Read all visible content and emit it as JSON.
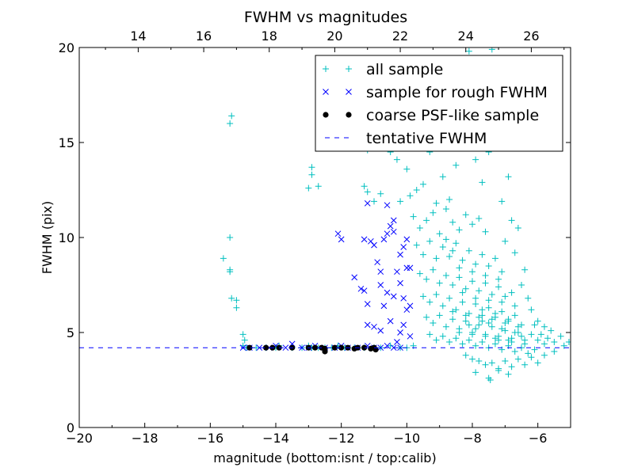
{
  "chart_data": {
    "type": "scatter",
    "title": "FWHM vs magnitudes",
    "xlabel": "magnitude (bottom:isnt / top:calib)",
    "ylabel": "FWHM (pix)",
    "xlim": [
      -20,
      -5
    ],
    "ylim": [
      0,
      20
    ],
    "x_ticks": [
      "−20",
      "−18",
      "−16",
      "−14",
      "−12",
      "−10",
      "−8",
      "−6"
    ],
    "y_ticks": [
      "0",
      "5",
      "10",
      "15",
      "20"
    ],
    "top_x_ticks": [
      "14",
      "16",
      "18",
      "20",
      "22",
      "24",
      "26"
    ],
    "top_axis_offset": 32.2,
    "grid": false,
    "legend_position": "top-right",
    "series": [
      {
        "name": "all sample",
        "marker": "plus",
        "color": "#00BFBF",
        "points": [
          [
            -15.6,
            8.9
          ],
          [
            -15.4,
            8.3
          ],
          [
            -15.4,
            8.2
          ],
          [
            -15.4,
            10.0
          ],
          [
            -15.35,
            16.4
          ],
          [
            -15.4,
            16.0
          ],
          [
            -15.35,
            6.8
          ],
          [
            -15.2,
            6.7
          ],
          [
            -15.2,
            6.3
          ],
          [
            -15.0,
            4.9
          ],
          [
            -14.95,
            4.6
          ],
          [
            -15.0,
            4.3
          ],
          [
            -14.9,
            4.2
          ],
          [
            -14.6,
            4.2
          ],
          [
            -14.3,
            4.2
          ],
          [
            -14.0,
            4.2
          ],
          [
            -13.9,
            4.3
          ],
          [
            -13.5,
            4.2
          ],
          [
            -13.2,
            4.2
          ],
          [
            -13.0,
            4.3
          ],
          [
            -12.9,
            4.2
          ],
          [
            -12.7,
            4.2
          ],
          [
            -12.5,
            4.2
          ],
          [
            -12.3,
            4.2
          ],
          [
            -12.1,
            4.3
          ],
          [
            -11.9,
            4.2
          ],
          [
            -11.6,
            4.2
          ],
          [
            -11.3,
            4.2
          ],
          [
            -11.0,
            4.2
          ],
          [
            -10.8,
            4.2
          ],
          [
            -10.5,
            4.3
          ],
          [
            -10.2,
            4.2
          ],
          [
            -10.0,
            4.2
          ],
          [
            -9.8,
            4.3
          ],
          [
            -13.0,
            12.6
          ],
          [
            -12.9,
            13.7
          ],
          [
            -12.9,
            13.3
          ],
          [
            -12.7,
            12.7
          ],
          [
            -11.3,
            12.7
          ],
          [
            -11.2,
            12.4
          ],
          [
            -11.2,
            14.6
          ],
          [
            -11.0,
            11.9
          ],
          [
            -10.8,
            12.3
          ],
          [
            -10.5,
            14.5
          ],
          [
            -10.3,
            14.1
          ],
          [
            -10.2,
            11.9
          ],
          [
            -10.0,
            13.6
          ],
          [
            -9.9,
            12.2
          ],
          [
            -9.7,
            12.5
          ],
          [
            -9.5,
            12.8
          ],
          [
            -9.3,
            14.5
          ],
          [
            -9.1,
            11.8
          ],
          [
            -8.9,
            13.2
          ],
          [
            -8.7,
            12.0
          ],
          [
            -8.5,
            13.8
          ],
          [
            -8.4,
            16.5
          ],
          [
            -8.3,
            19.4
          ],
          [
            -8.1,
            19.8
          ],
          [
            -7.9,
            14.1
          ],
          [
            -7.7,
            12.9
          ],
          [
            -7.5,
            14.5
          ],
          [
            -7.3,
            15.4
          ],
          [
            -7.1,
            11.9
          ],
          [
            -6.9,
            13.2
          ],
          [
            -7.4,
            19.9
          ],
          [
            -8.6,
            17.2
          ],
          [
            -9.0,
            16.0
          ],
          [
            -8.2,
            15.3
          ],
          [
            -9.8,
            11.1
          ],
          [
            -9.6,
            10.5
          ],
          [
            -9.4,
            10.9
          ],
          [
            -9.2,
            11.3
          ],
          [
            -9.0,
            10.2
          ],
          [
            -8.8,
            11.5
          ],
          [
            -8.6,
            10.8
          ],
          [
            -8.4,
            10.4
          ],
          [
            -8.2,
            11.2
          ],
          [
            -8.0,
            10.7
          ],
          [
            -7.8,
            11.0
          ],
          [
            -7.6,
            10.3
          ],
          [
            -9.7,
            9.6
          ],
          [
            -9.5,
            9.1
          ],
          [
            -9.3,
            9.8
          ],
          [
            -9.1,
            8.9
          ],
          [
            -8.9,
            9.5
          ],
          [
            -8.7,
            9.0
          ],
          [
            -8.5,
            9.7
          ],
          [
            -8.3,
            8.8
          ],
          [
            -8.1,
            9.3
          ],
          [
            -7.9,
            8.6
          ],
          [
            -7.7,
            9.1
          ],
          [
            -7.5,
            8.5
          ],
          [
            -7.3,
            8.9
          ],
          [
            -7.1,
            8.2
          ],
          [
            -9.6,
            8.1
          ],
          [
            -9.4,
            7.8
          ],
          [
            -9.2,
            8.3
          ],
          [
            -9.0,
            7.6
          ],
          [
            -8.8,
            8.0
          ],
          [
            -8.6,
            7.5
          ],
          [
            -8.4,
            7.9
          ],
          [
            -8.2,
            7.3
          ],
          [
            -8.0,
            7.7
          ],
          [
            -7.8,
            7.2
          ],
          [
            -7.6,
            7.6
          ],
          [
            -7.4,
            7.0
          ],
          [
            -7.2,
            7.4
          ],
          [
            -7.0,
            6.9
          ],
          [
            -6.8,
            7.1
          ],
          [
            -9.5,
            6.9
          ],
          [
            -9.3,
            6.6
          ],
          [
            -9.1,
            7.0
          ],
          [
            -8.9,
            6.4
          ],
          [
            -8.7,
            6.8
          ],
          [
            -8.5,
            6.2
          ],
          [
            -8.3,
            6.6
          ],
          [
            -8.1,
            6.0
          ],
          [
            -7.9,
            6.5
          ],
          [
            -7.7,
            5.9
          ],
          [
            -7.5,
            6.3
          ],
          [
            -7.3,
            5.8
          ],
          [
            -7.1,
            6.1
          ],
          [
            -6.9,
            5.6
          ],
          [
            -6.7,
            5.9
          ],
          [
            -6.5,
            5.4
          ],
          [
            -9.4,
            5.8
          ],
          [
            -9.2,
            5.5
          ],
          [
            -9.0,
            5.9
          ],
          [
            -8.8,
            5.3
          ],
          [
            -8.6,
            5.7
          ],
          [
            -8.4,
            5.2
          ],
          [
            -8.2,
            5.6
          ],
          [
            -8.0,
            5.0
          ],
          [
            -7.8,
            5.4
          ],
          [
            -7.6,
            4.9
          ],
          [
            -7.4,
            5.3
          ],
          [
            -7.2,
            4.8
          ],
          [
            -7.0,
            5.1
          ],
          [
            -6.8,
            4.7
          ],
          [
            -6.6,
            5.0
          ],
          [
            -6.4,
            4.6
          ],
          [
            -6.2,
            4.9
          ],
          [
            -9.3,
            4.9
          ],
          [
            -9.1,
            4.6
          ],
          [
            -8.9,
            4.8
          ],
          [
            -8.7,
            4.5
          ],
          [
            -8.5,
            4.7
          ],
          [
            -8.3,
            4.4
          ],
          [
            -8.1,
            4.6
          ],
          [
            -7.9,
            4.3
          ],
          [
            -7.7,
            4.5
          ],
          [
            -7.5,
            4.2
          ],
          [
            -7.3,
            4.4
          ],
          [
            -7.1,
            4.1
          ],
          [
            -6.9,
            4.3
          ],
          [
            -6.7,
            4.0
          ],
          [
            -6.5,
            4.2
          ],
          [
            -6.3,
            3.9
          ],
          [
            -6.1,
            4.1
          ],
          [
            -8.2,
            3.8
          ],
          [
            -8.0,
            3.6
          ],
          [
            -7.8,
            3.5
          ],
          [
            -7.6,
            3.3
          ],
          [
            -7.4,
            3.4
          ],
          [
            -7.2,
            3.1
          ],
          [
            -7.0,
            3.5
          ],
          [
            -6.8,
            3.2
          ],
          [
            -6.6,
            3.6
          ],
          [
            -6.4,
            3.3
          ],
          [
            -6.2,
            3.7
          ],
          [
            -6.0,
            3.4
          ],
          [
            -5.8,
            3.8
          ],
          [
            -5.5,
            4.0
          ],
          [
            -7.5,
            2.6
          ],
          [
            -7.45,
            2.5
          ],
          [
            -7.9,
            2.9
          ],
          [
            -7.2,
            3.0
          ],
          [
            -6.9,
            2.8
          ],
          [
            -6.0,
            4.6
          ],
          [
            -5.9,
            4.9
          ],
          [
            -5.8,
            4.4
          ],
          [
            -5.7,
            4.7
          ],
          [
            -5.6,
            5.1
          ],
          [
            -5.5,
            4.5
          ],
          [
            -5.3,
            4.8
          ],
          [
            -5.2,
            4.3
          ],
          [
            -5.05,
            4.5
          ],
          [
            -6.1,
            5.4
          ],
          [
            -6.0,
            5.6
          ],
          [
            -5.8,
            5.3
          ],
          [
            -6.3,
            6.8
          ],
          [
            -6.5,
            7.5
          ],
          [
            -6.4,
            8.3
          ],
          [
            -6.7,
            9.2
          ],
          [
            -6.6,
            10.5
          ],
          [
            -6.8,
            10.9
          ],
          [
            -7.0,
            9.8
          ],
          [
            -6.2,
            6.2
          ],
          [
            -8.8,
            9.9
          ],
          [
            -8.6,
            9.3
          ],
          [
            -8.4,
            8.4
          ],
          [
            -8.0,
            8.2
          ],
          [
            -7.6,
            8.0
          ],
          [
            -7.2,
            7.8
          ],
          [
            -8.3,
            7.1
          ],
          [
            -7.9,
            6.8
          ],
          [
            -7.5,
            6.7
          ],
          [
            -7.1,
            6.6
          ],
          [
            -6.7,
            6.4
          ],
          [
            -8.6,
            6.1
          ],
          [
            -8.2,
            5.9
          ],
          [
            -7.8,
            5.8
          ],
          [
            -7.4,
            5.7
          ],
          [
            -7.0,
            5.5
          ],
          [
            -6.6,
            5.3
          ],
          [
            -8.4,
            5.0
          ],
          [
            -8.0,
            4.9
          ],
          [
            -7.6,
            4.8
          ],
          [
            -7.2,
            4.6
          ],
          [
            -6.8,
            4.5
          ],
          [
            -6.4,
            4.4
          ],
          [
            -7.7,
            6.2
          ],
          [
            -7.3,
            6.0
          ],
          [
            -6.9,
            5.7
          ],
          [
            -7.5,
            5.5
          ],
          [
            -7.1,
            5.2
          ],
          [
            -6.7,
            5.0
          ],
          [
            -7.3,
            4.7
          ],
          [
            -6.9,
            4.6
          ],
          [
            -6.5,
            4.8
          ],
          [
            -7.9,
            5.2
          ],
          [
            -8.1,
            5.4
          ],
          [
            -7.7,
            5.6
          ]
        ]
      },
      {
        "name": "sample for rough FWHM",
        "marker": "x",
        "color": "#0000FF",
        "points": [
          [
            -15.0,
            4.2
          ],
          [
            -14.8,
            4.2
          ],
          [
            -14.5,
            4.2
          ],
          [
            -14.2,
            4.2
          ],
          [
            -14.0,
            4.3
          ],
          [
            -13.7,
            4.2
          ],
          [
            -13.5,
            4.4
          ],
          [
            -13.2,
            4.2
          ],
          [
            -13.0,
            4.2
          ],
          [
            -12.8,
            4.3
          ],
          [
            -12.5,
            4.2
          ],
          [
            -12.2,
            4.2
          ],
          [
            -12.0,
            4.3
          ],
          [
            -11.8,
            4.2
          ],
          [
            -11.5,
            4.2
          ],
          [
            -11.2,
            4.3
          ],
          [
            -11.0,
            4.2
          ],
          [
            -10.8,
            4.2
          ],
          [
            -10.6,
            4.3
          ],
          [
            -10.4,
            4.2
          ],
          [
            -10.2,
            4.2
          ],
          [
            -12.1,
            10.2
          ],
          [
            -12.0,
            9.9
          ],
          [
            -11.6,
            7.9
          ],
          [
            -11.2,
            11.8
          ],
          [
            -11.3,
            9.9
          ],
          [
            -11.1,
            9.8
          ],
          [
            -11.4,
            7.3
          ],
          [
            -11.3,
            7.2
          ],
          [
            -11.2,
            6.5
          ],
          [
            -11.0,
            9.6
          ],
          [
            -10.9,
            8.7
          ],
          [
            -10.8,
            8.2
          ],
          [
            -10.7,
            9.9
          ],
          [
            -10.8,
            7.5
          ],
          [
            -10.6,
            7.1
          ],
          [
            -10.7,
            6.4
          ],
          [
            -10.5,
            10.6
          ],
          [
            -10.4,
            10.9
          ],
          [
            -10.6,
            11.7
          ],
          [
            -10.3,
            8.2
          ],
          [
            -10.2,
            7.6
          ],
          [
            -10.1,
            9.5
          ],
          [
            -10.0,
            8.4
          ],
          [
            -9.9,
            8.4
          ],
          [
            -10.0,
            6.2
          ],
          [
            -10.1,
            5.4
          ],
          [
            -10.2,
            5.0
          ],
          [
            -9.9,
            4.8
          ],
          [
            -10.3,
            4.5
          ],
          [
            -10.5,
            5.6
          ],
          [
            -10.8,
            5.1
          ],
          [
            -11.0,
            5.3
          ],
          [
            -11.2,
            5.4
          ],
          [
            -10.1,
            6.8
          ],
          [
            -9.9,
            6.4
          ],
          [
            -10.4,
            6.9
          ],
          [
            -10.6,
            10.2
          ],
          [
            -10.2,
            9.1
          ],
          [
            -10.0,
            9.9
          ],
          [
            -10.4,
            10.3
          ]
        ]
      },
      {
        "name": "coarse PSF-like sample",
        "marker": "dot",
        "color": "#000000",
        "points": [
          [
            -14.8,
            4.2
          ],
          [
            -14.3,
            4.2
          ],
          [
            -14.1,
            4.2
          ],
          [
            -13.9,
            4.2
          ],
          [
            -13.5,
            4.2
          ],
          [
            -13.0,
            4.2
          ],
          [
            -12.8,
            4.2
          ],
          [
            -12.6,
            4.2
          ],
          [
            -12.5,
            4.0
          ],
          [
            -12.5,
            4.15
          ],
          [
            -12.2,
            4.2
          ],
          [
            -12.0,
            4.2
          ],
          [
            -11.8,
            4.2
          ],
          [
            -11.6,
            4.15
          ],
          [
            -11.5,
            4.2
          ],
          [
            -11.3,
            4.2
          ],
          [
            -11.1,
            4.15
          ],
          [
            -11.0,
            4.2
          ],
          [
            -10.95,
            4.1
          ]
        ]
      },
      {
        "name": "tentative FWHM",
        "marker": "dashed-line",
        "color": "#0000FF",
        "y": 4.2
      }
    ]
  }
}
